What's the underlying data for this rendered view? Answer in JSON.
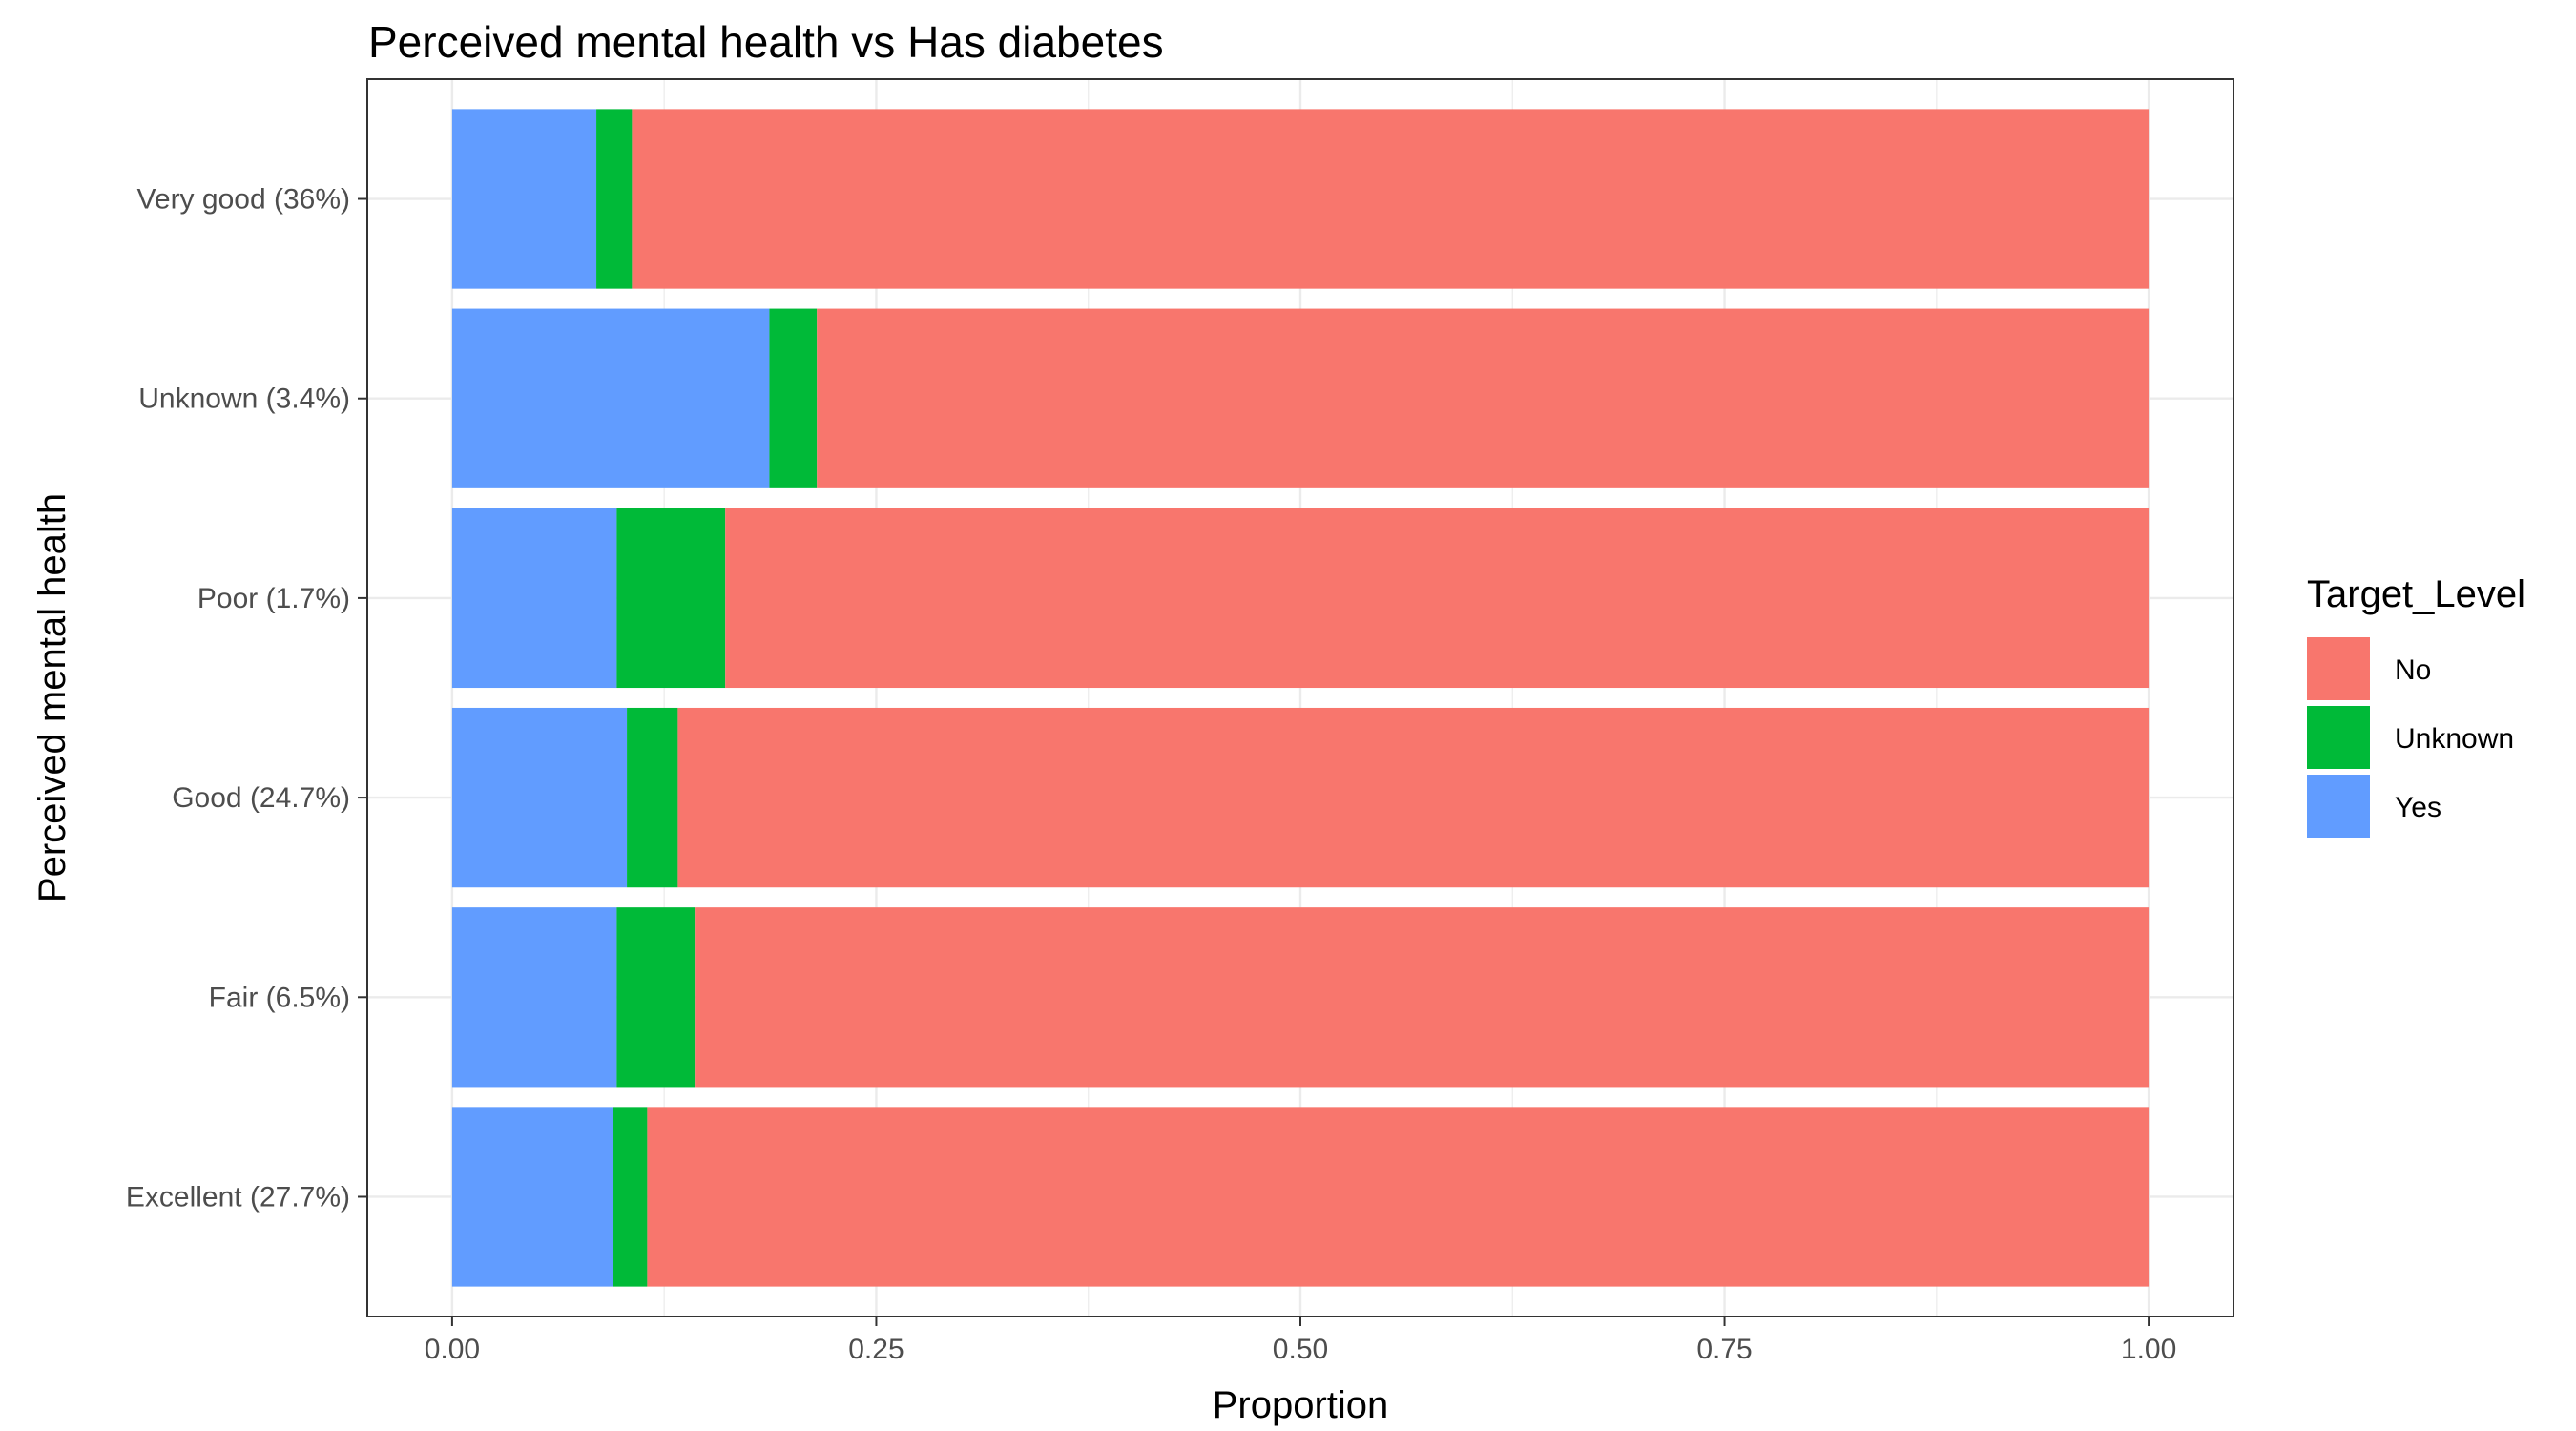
{
  "chart_data": {
    "type": "bar",
    "orientation": "horizontal",
    "stacked": true,
    "title": "Perceived mental health  vs Has diabetes",
    "xlabel": "Proportion",
    "ylabel": "Perceived mental health",
    "xlim": [
      0,
      1
    ],
    "x_ticks": [
      "0.00",
      "0.25",
      "0.50",
      "0.75",
      "1.00"
    ],
    "x_tick_values": [
      0,
      0.25,
      0.5,
      0.75,
      1.0
    ],
    "grid": true,
    "categories": [
      "Excellent (27.7%)",
      "Fair (6.5%)",
      "Good (24.7%)",
      "Poor (1.7%)",
      "Unknown (3.4%)",
      "Very good (36%)"
    ],
    "series": [
      {
        "name": "Yes",
        "color": "#619CFF",
        "values": [
          0.095,
          0.097,
          0.103,
          0.097,
          0.187,
          0.085
        ]
      },
      {
        "name": "Unknown",
        "color": "#00BA38",
        "values": [
          0.02,
          0.046,
          0.03,
          0.064,
          0.028,
          0.021
        ]
      },
      {
        "name": "No",
        "color": "#F8766D",
        "values": [
          0.885,
          0.857,
          0.867,
          0.839,
          0.785,
          0.894
        ]
      }
    ],
    "legend": {
      "title": "Target_Level",
      "placement": "right",
      "entries": [
        {
          "label": "No",
          "color": "#F8766D"
        },
        {
          "label": "Unknown",
          "color": "#00BA38"
        },
        {
          "label": "Yes",
          "color": "#619CFF"
        }
      ]
    }
  }
}
